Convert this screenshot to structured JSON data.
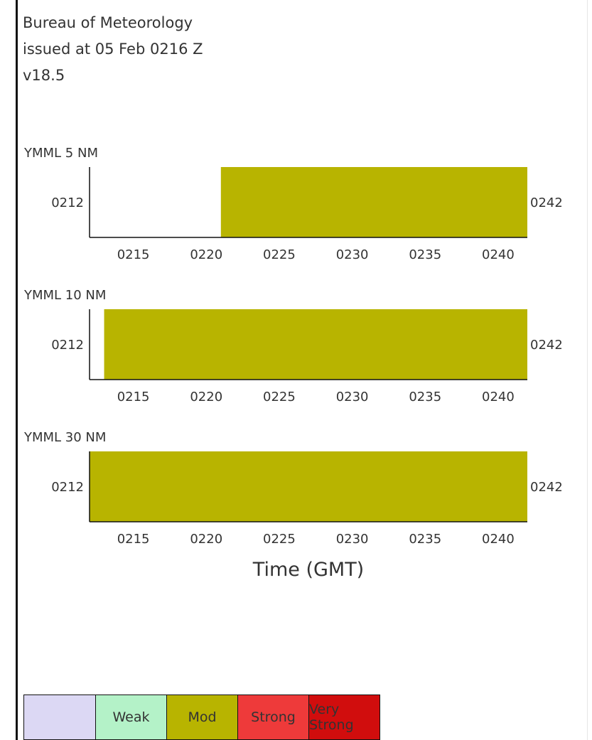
{
  "header": {
    "line1": "Bureau of Meteorology",
    "line2": "issued at 05 Feb 0216 Z",
    "line3": "v18.5"
  },
  "chart_data": {
    "type": "bar",
    "xlabel": "Time (GMT)",
    "xlim": [
      212,
      242
    ],
    "x_ticks": [
      "0215",
      "0220",
      "0225",
      "0230",
      "0235",
      "0240"
    ],
    "start_label": "0212",
    "end_label": "0242",
    "panels": [
      {
        "label": "YMML 5 NM",
        "start": 221,
        "end": 242,
        "category": "Mod"
      },
      {
        "label": "YMML 10 NM",
        "start": 213,
        "end": 242,
        "category": "Mod"
      },
      {
        "label": "YMML 30 NM",
        "start": 212,
        "end": 242,
        "category": "Mod"
      }
    ]
  },
  "legend": {
    "items": [
      {
        "label": "",
        "color": "#dcd8f4"
      },
      {
        "label": "Weak",
        "color": "#b4f2c8"
      },
      {
        "label": "Mod",
        "color": "#b8b400"
      },
      {
        "label": "Strong",
        "color": "#ee3a3a"
      },
      {
        "label": "Very Strong",
        "color": "#d10d0d"
      }
    ]
  },
  "colors": {
    "mod_bar": "#b8b400",
    "axis": "#111111"
  }
}
